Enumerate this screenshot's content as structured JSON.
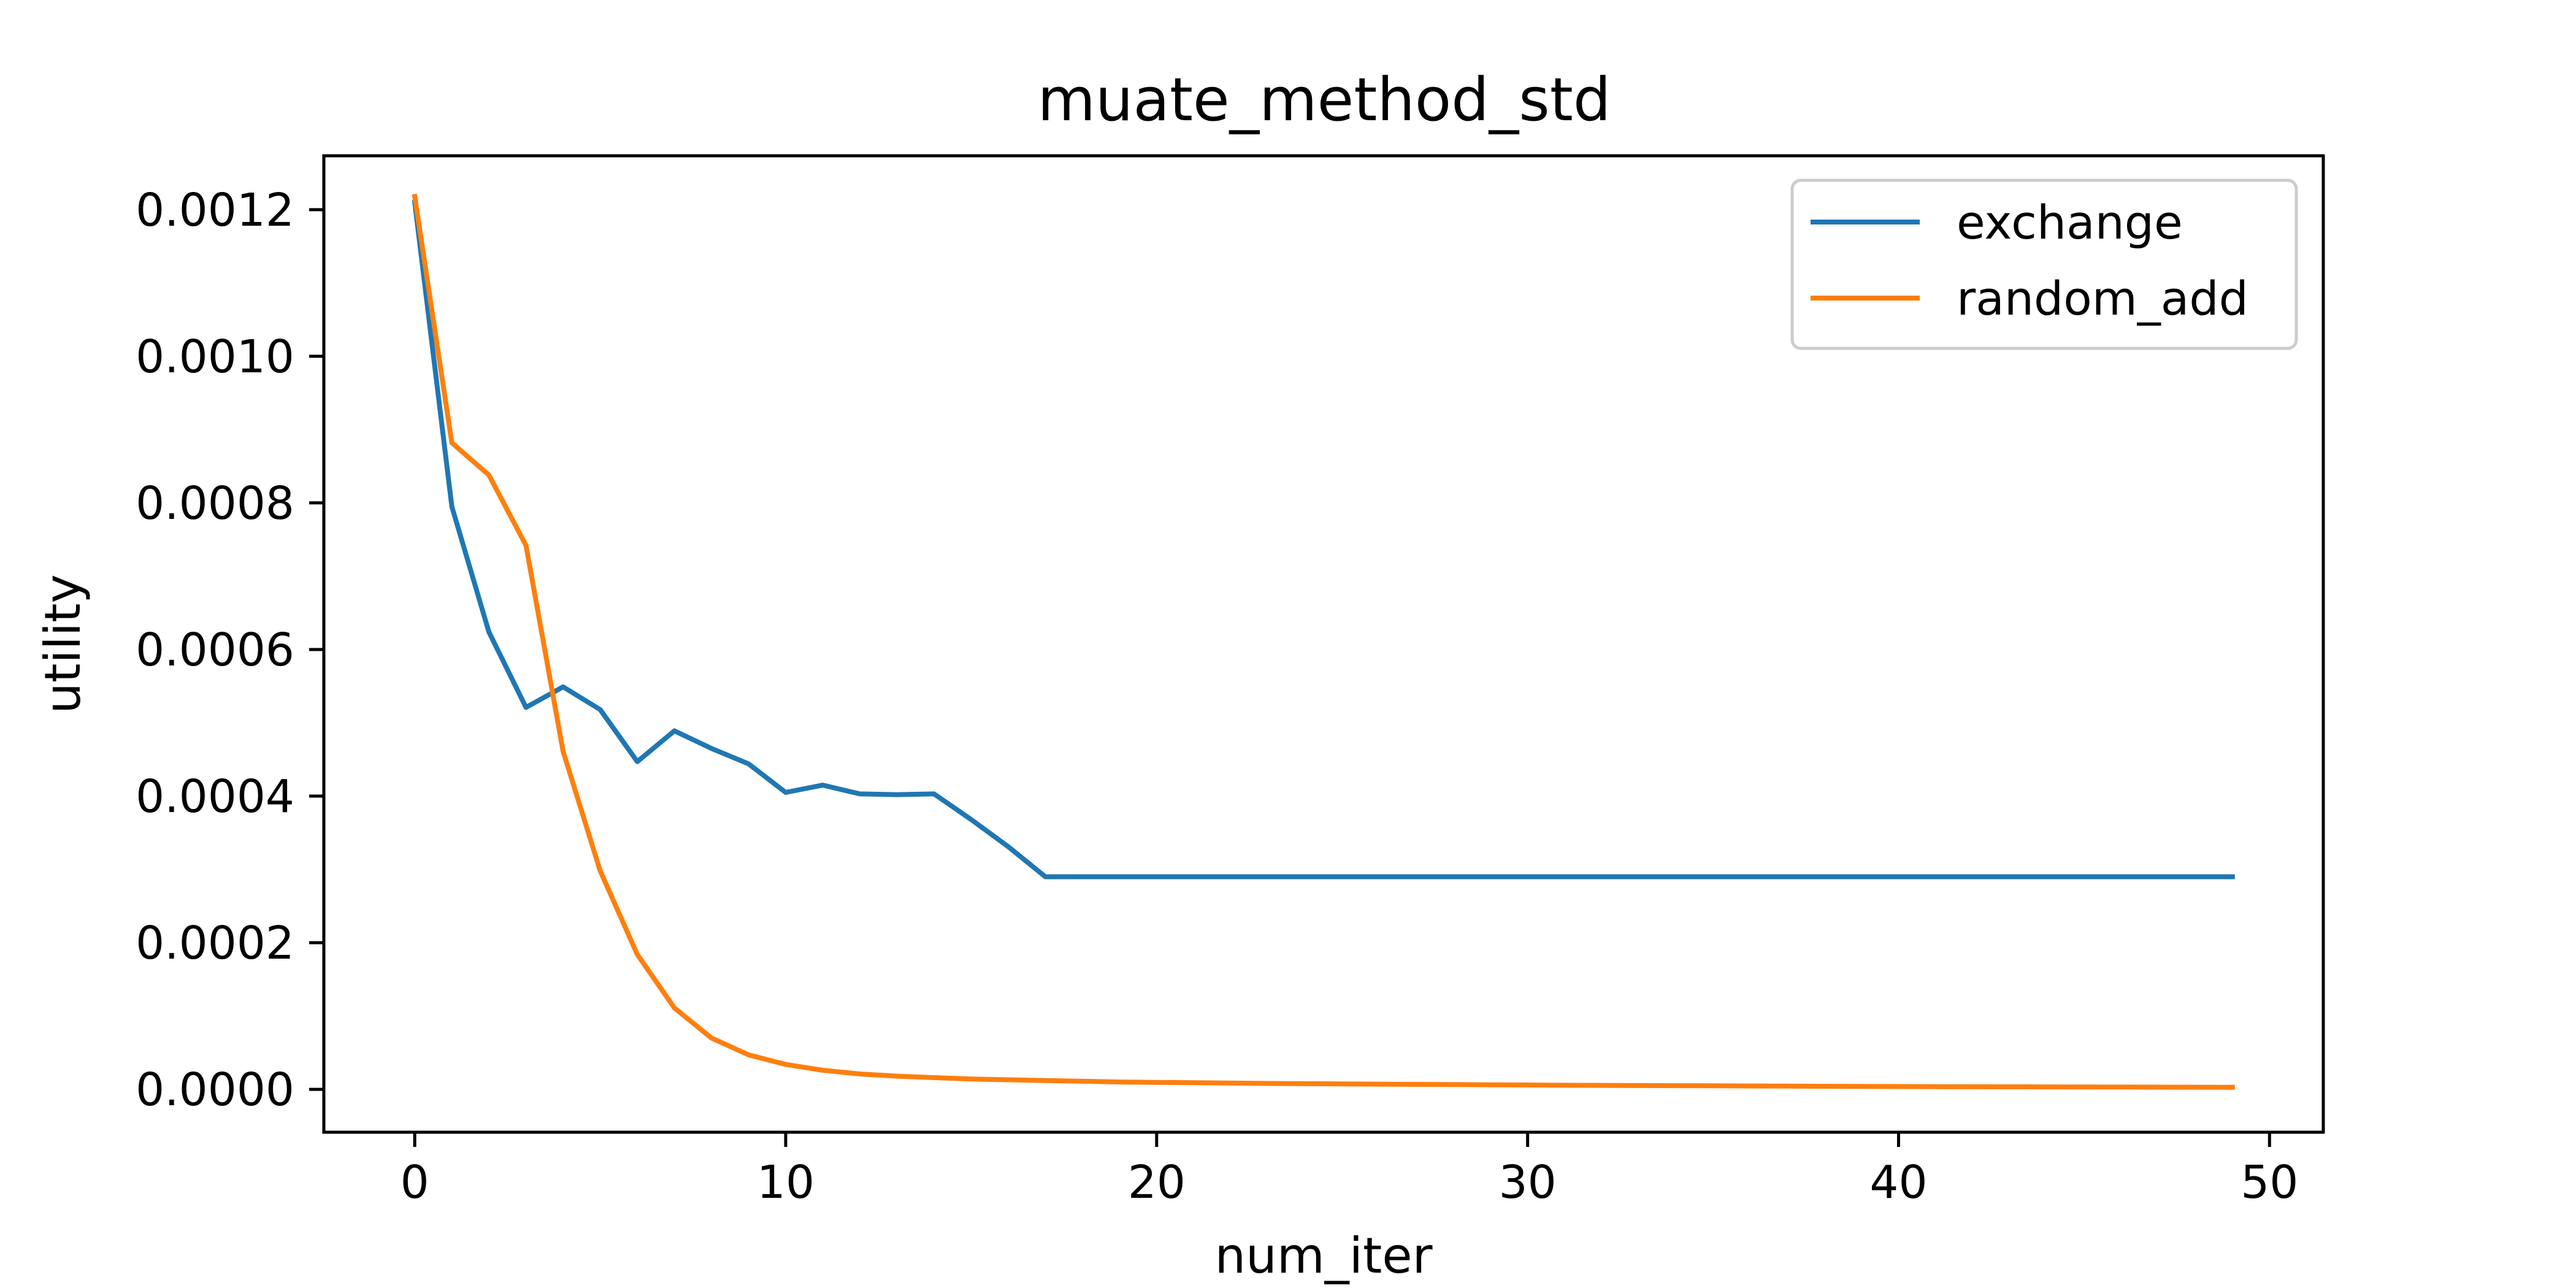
{
  "chart_data": {
    "type": "line",
    "title": "muate_method_std",
    "xlabel": "num_iter",
    "ylabel": "utility",
    "xlim": [
      -2.45,
      51.45
    ],
    "ylim": [
      -5.85e-05,
      0.0012735
    ],
    "xticks": [
      0,
      10,
      20,
      30,
      40,
      50
    ],
    "xtick_labels": [
      "0",
      "10",
      "20",
      "30",
      "40",
      "50"
    ],
    "yticks": [
      0,
      0.0002,
      0.0004,
      0.0006,
      0.0008,
      0.001,
      0.0012
    ],
    "ytick_labels": [
      "0.0000",
      "0.0002",
      "0.0004",
      "0.0006",
      "0.0008",
      "0.0010",
      "0.0012"
    ],
    "grid": false,
    "legend_position": "top-right",
    "x": [
      0,
      1,
      2,
      3,
      4,
      5,
      6,
      7,
      8,
      9,
      10,
      11,
      12,
      13,
      14,
      15,
      16,
      17,
      18,
      19,
      20,
      21,
      22,
      23,
      24,
      25,
      26,
      27,
      28,
      29,
      30,
      31,
      32,
      33,
      34,
      35,
      36,
      37,
      38,
      39,
      40,
      41,
      42,
      43,
      44,
      45,
      46,
      47,
      48,
      49
    ],
    "series": [
      {
        "name": "exchange",
        "color": "#1f77b4",
        "values": [
          0.00121,
          0.000795,
          0.000624,
          0.000521,
          0.000549,
          0.000518,
          0.000447,
          0.000489,
          0.000465,
          0.000444,
          0.000405,
          0.000415,
          0.000403,
          0.000402,
          0.000403,
          0.000368,
          0.000331,
          0.00029,
          0.00029,
          0.00029,
          0.00029,
          0.00029,
          0.00029,
          0.00029,
          0.00029,
          0.00029,
          0.00029,
          0.00029,
          0.00029,
          0.00029,
          0.00029,
          0.00029,
          0.00029,
          0.00029,
          0.00029,
          0.00029,
          0.00029,
          0.00029,
          0.00029,
          0.00029,
          0.00029,
          0.00029,
          0.00029,
          0.00029,
          0.00029,
          0.00029,
          0.00029,
          0.00029,
          0.00029,
          0.00029
        ]
      },
      {
        "name": "random_add",
        "color": "#ff7f0e",
        "values": [
          0.001218,
          0.000882,
          0.000838,
          0.000742,
          0.000461,
          0.000298,
          0.000184,
          0.000111,
          7e-05,
          4.7e-05,
          3.4e-05,
          2.6e-05,
          2.1e-05,
          1.8e-05,
          1.6e-05,
          1.4e-05,
          1.3e-05,
          1.2e-05,
          1.1e-05,
          1e-05,
          9.5e-06,
          9e-06,
          8.5e-06,
          8e-06,
          7.7e-06,
          7.4e-06,
          7.1e-06,
          6.8e-06,
          6.5e-06,
          6.2e-06,
          5.9e-06,
          5.6e-06,
          5.4e-06,
          5.2e-06,
          5e-06,
          4.8e-06,
          4.6e-06,
          4.4e-06,
          4.2e-06,
          4e-06,
          3.8e-06,
          3.6e-06,
          3.5e-06,
          3.4e-06,
          3.3e-06,
          3.2e-06,
          3.1e-06,
          3e-06,
          2.9e-06,
          2.8e-06
        ]
      }
    ]
  }
}
